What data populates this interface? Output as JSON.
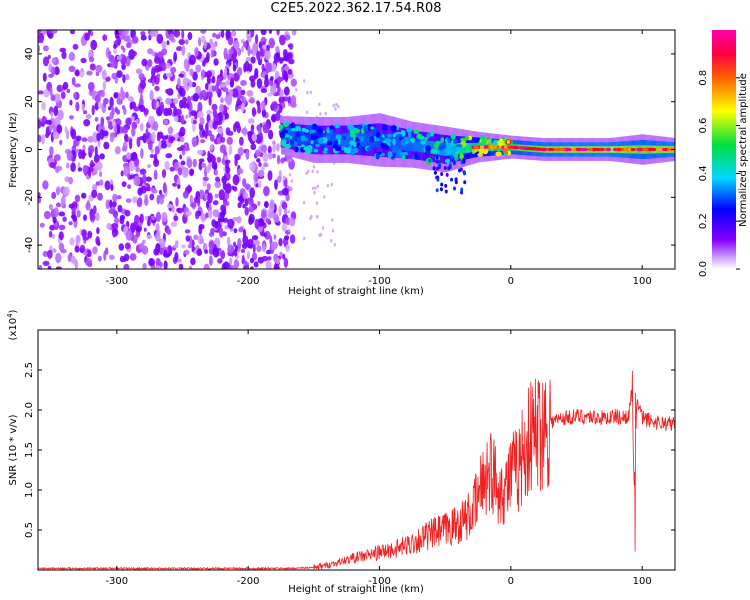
{
  "title": "C2E5.2022.362.17.54.R08",
  "chart_data": [
    {
      "type": "heatmap",
      "xlabel": "Height of straight line (km)",
      "ylabel": "Frequency (Hz)",
      "xlim": [
        -360,
        125
      ],
      "ylim": [
        -50,
        50
      ],
      "x_ticks": [
        -300,
        -200,
        -100,
        0,
        100
      ],
      "x_tick_labels": [
        "-300",
        "-200",
        "-100",
        "0",
        "100"
      ],
      "y_ticks": [
        -40,
        -20,
        0,
        20,
        40
      ],
      "y_tick_labels": [
        "-40",
        "-20",
        "0",
        "20",
        "40"
      ],
      "noise_region": {
        "x_range": [
          -360,
          -175
        ],
        "y_range": [
          -50,
          50
        ],
        "amplitude": 0.15
      },
      "signal_band": [
        {
          "x": -175,
          "center": 6,
          "half_width": 5,
          "amplitude": 0.45
        },
        {
          "x": -150,
          "center": 4,
          "half_width": 6,
          "amplitude": 0.4
        },
        {
          "x": -125,
          "center": 4,
          "half_width": 6,
          "amplitude": 0.45
        },
        {
          "x": -100,
          "center": 4,
          "half_width": 7,
          "amplitude": 0.42
        },
        {
          "x": -75,
          "center": 2,
          "half_width": 6,
          "amplitude": 0.45
        },
        {
          "x": -50,
          "center": 0,
          "half_width": 6,
          "amplitude": 0.5
        },
        {
          "x": -25,
          "center": 1,
          "half_width": 4,
          "amplitude": 0.65
        },
        {
          "x": 0,
          "center": 1,
          "half_width": 3,
          "amplitude": 0.75
        },
        {
          "x": 25,
          "center": 0,
          "half_width": 3,
          "amplitude": 0.8
        },
        {
          "x": 50,
          "center": 0,
          "half_width": 3,
          "amplitude": 0.82
        },
        {
          "x": 75,
          "center": 0,
          "half_width": 3,
          "amplitude": 0.82
        },
        {
          "x": 100,
          "center": 0,
          "half_width": 4,
          "amplitude": 0.78
        },
        {
          "x": 125,
          "center": 0,
          "half_width": 3,
          "amplitude": 0.82
        }
      ],
      "colorbar": {
        "label": "Normalized spectral amplitude",
        "range": [
          0,
          1
        ],
        "ticks": [
          0.0,
          0.2,
          0.4,
          0.6,
          0.8
        ],
        "tick_labels": [
          "0.0",
          "0.2",
          "0.4",
          "0.6",
          "0.8"
        ],
        "colors": [
          "#ffffff",
          "#8800ff",
          "#0000ff",
          "#00d8ff",
          "#00e040",
          "#ffff00",
          "#ff0000",
          "#ff00aa"
        ]
      }
    },
    {
      "type": "line",
      "xlabel": "Height of straight line (km)",
      "ylabel": "SNR (10 * v/v)",
      "y_scale_label": "(x10",
      "y_scale_exponent": "4",
      "y_scale_suffix": ")",
      "xlim": [
        -360,
        125
      ],
      "ylim": [
        0,
        3
      ],
      "x_ticks": [
        -300,
        -200,
        -100,
        0,
        100
      ],
      "x_tick_labels": [
        "-300",
        "-200",
        "-100",
        "0",
        "100"
      ],
      "y_ticks": [
        0.5,
        1.0,
        1.5,
        2.0,
        2.5
      ],
      "y_tick_labels": [
        "0.5",
        "1.0",
        "1.5",
        "2.0",
        "2.5"
      ],
      "color": "#ee2222",
      "series": [
        {
          "x": [
            -360,
            -300,
            -250,
            -200,
            -170,
            -150,
            -140,
            -130,
            -120,
            -110,
            -100,
            -90,
            -80,
            -70,
            -60,
            -50,
            -40,
            -30,
            -25,
            -20,
            -15,
            -10,
            -5,
            0,
            5,
            10,
            15,
            20,
            30,
            40,
            50,
            60,
            70,
            80,
            85,
            90,
            92,
            94,
            96,
            100,
            110,
            125
          ],
          "y": [
            0.02,
            0.02,
            0.02,
            0.02,
            0.02,
            0.03,
            0.06,
            0.1,
            0.15,
            0.18,
            0.22,
            0.25,
            0.3,
            0.38,
            0.45,
            0.5,
            0.58,
            0.7,
            0.9,
            1.2,
            1.25,
            1.05,
            1.0,
            1.2,
            1.25,
            1.5,
            1.65,
            1.75,
            1.85,
            1.9,
            1.92,
            1.92,
            1.9,
            1.92,
            1.9,
            1.95,
            2.2,
            1.0,
            2.1,
            1.9,
            1.85,
            1.82
          ]
        }
      ]
    }
  ]
}
